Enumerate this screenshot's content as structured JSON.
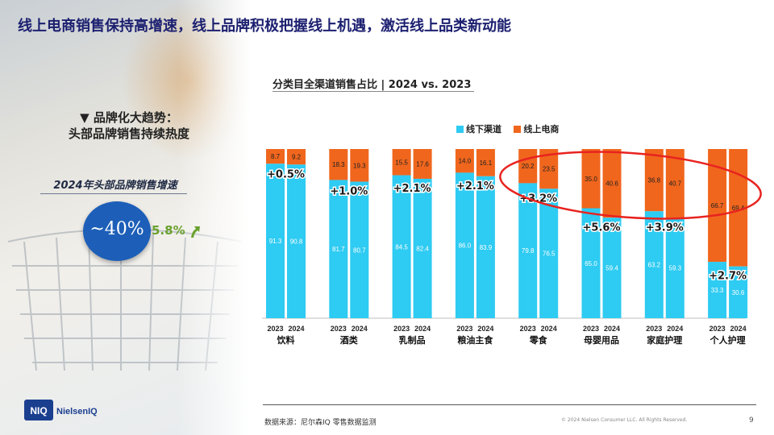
{
  "title": "线上电商销售保持高增速，线上品牌积极把握线上机遇，激活线上品类新动能",
  "left_panel": {
    "trend_heading_line1": "▼ 品牌化大趋势：",
    "trend_heading_line2": "头部品牌销售持续热度",
    "growth_label": "2024年头部品牌销售增速",
    "circle_value": "~40%",
    "overall_growth": "5.8%",
    "circle_color": "#1d5fb8",
    "growth_color": "#6aa12f",
    "arrow_icon": "up-arrow-icon"
  },
  "brand": {
    "logo_mark": "NIQ",
    "logo_text": "NielsenIQ",
    "color": "#1b3f8f"
  },
  "chart_data": {
    "type": "bar",
    "stacked": true,
    "normalized_100": true,
    "title": "分类目全渠道销售占比 | 2024 vs. 2023",
    "legend": [
      {
        "name": "线下渠道",
        "color": "#2ecbf2"
      },
      {
        "name": "线上电商",
        "color": "#f0661d"
      }
    ],
    "legend_position": "top-right",
    "categories": [
      "饮料",
      "酒类",
      "乳制品",
      "粮油主食",
      "零食",
      "母婴用品",
      "家庭护理",
      "个人护理"
    ],
    "years": [
      "2023",
      "2024"
    ],
    "offline_2023": [
      91.3,
      81.7,
      84.5,
      86.0,
      79.8,
      65.0,
      63.2,
      33.3
    ],
    "offline_2024": [
      90.8,
      80.7,
      82.4,
      83.9,
      76.5,
      59.4,
      59.3,
      30.6
    ],
    "online_2023": [
      8.7,
      18.3,
      15.5,
      14.0,
      20.2,
      35.0,
      36.8,
      66.7
    ],
    "online_2024": [
      9.2,
      19.3,
      17.6,
      16.1,
      23.5,
      40.6,
      40.7,
      69.4
    ],
    "online_share_change": [
      "+0.5%",
      "+1.0%",
      "+2.1%",
      "+2.1%",
      "+3.2%",
      "+5.6%",
      "+3.9%",
      "+2.7%"
    ],
    "highlight_categories": [
      "零食",
      "母婴用品",
      "家庭护理",
      "个人护理"
    ],
    "highlight_color": "#e8231f",
    "ylim": [
      0,
      100
    ],
    "grid": false
  },
  "footer": {
    "source": "数据来源：尼尔森IQ 零售数据监测",
    "copyright": "© 2024 Nielsen Consumer LLC. All Rights Reserved.",
    "page": "9"
  }
}
